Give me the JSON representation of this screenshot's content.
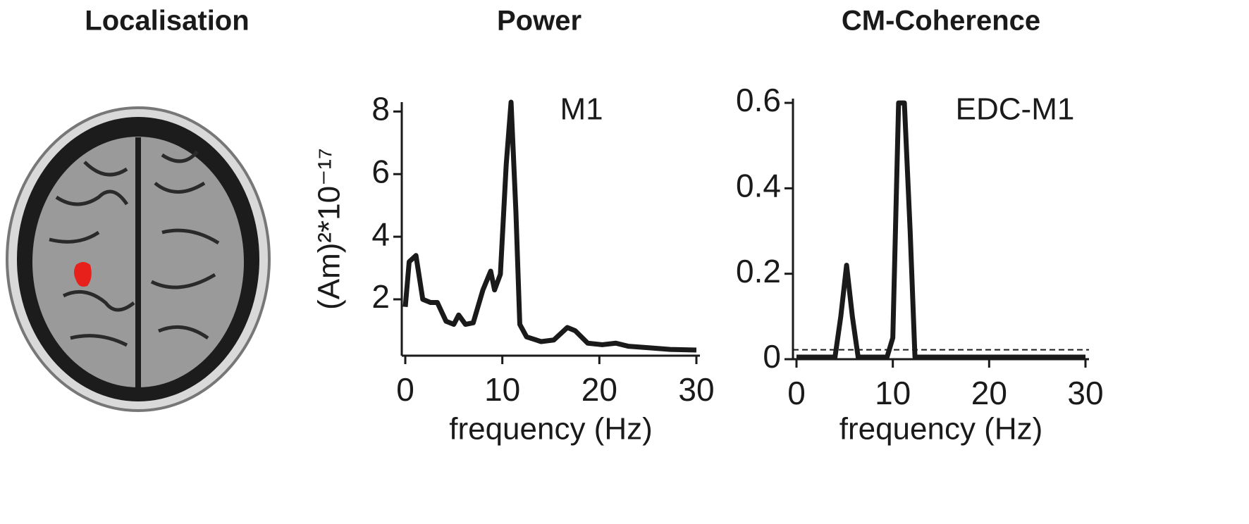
{
  "localisation": {
    "title": "Localisation"
  },
  "chart_data": [
    {
      "type": "line",
      "title": "Power",
      "annotation": "M1",
      "xlabel": "frequency (Hz)",
      "ylabel": "(Am)²*10⁻¹⁷",
      "x": [
        0,
        0.4,
        1.1,
        1.8,
        2.6,
        3.3,
        4.2,
        5,
        5.5,
        6.2,
        7,
        8,
        8.8,
        9.2,
        9.8,
        10.4,
        10.9,
        11.4,
        11.8,
        12.5,
        14,
        15.3,
        16.7,
        17.5,
        18.8,
        20.3,
        21.7,
        23,
        25.2,
        27.3,
        30
      ],
      "values": [
        1.76,
        3.2,
        3.4,
        2.0,
        1.9,
        1.9,
        1.3,
        1.2,
        1.5,
        1.2,
        1.25,
        2.3,
        2.9,
        2.3,
        2.8,
        6.3,
        8.3,
        4.8,
        1.2,
        0.8,
        0.65,
        0.7,
        1.1,
        1.0,
        0.6,
        0.55,
        0.6,
        0.5,
        0.45,
        0.4,
        0.38
      ],
      "color": "#1a1a1a",
      "xlim": [
        0,
        30
      ],
      "ylim": [
        0.2,
        8.3
      ],
      "xticks": [
        0,
        10,
        20,
        30
      ],
      "yticks": [
        2,
        4,
        6,
        8
      ]
    },
    {
      "type": "line",
      "title": "CM-Coherence",
      "annotation": "EDC-M1",
      "xlabel": "frequency (Hz)",
      "x": [
        0,
        4,
        4.6,
        5.2,
        5.8,
        6.4,
        9.4,
        10,
        10.6,
        11.2,
        11.8,
        12.3,
        30
      ],
      "values": [
        0.005,
        0.005,
        0.1,
        0.22,
        0.1,
        0.005,
        0.005,
        0.05,
        0.6,
        0.6,
        0.3,
        0.005,
        0.005
      ],
      "color": "#1a1a1a",
      "hline": 0.022,
      "xlim": [
        0,
        30
      ],
      "ylim": [
        0,
        0.61
      ],
      "xticks": [
        0,
        10,
        20,
        30
      ],
      "yticks": [
        0,
        0.2,
        0.4,
        0.6
      ]
    }
  ]
}
